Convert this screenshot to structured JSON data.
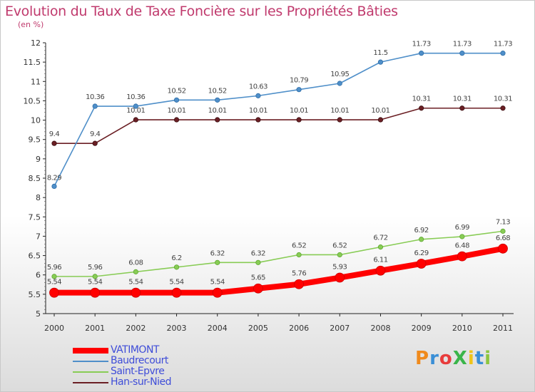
{
  "chart_data": {
    "type": "line",
    "title": "Evolution du Taux de Taxe Foncière sur les Propriétés Bâties",
    "subtitle": "(en %)",
    "x": [
      "2000",
      "2001",
      "2002",
      "2003",
      "2004",
      "2005",
      "2006",
      "2007",
      "2008",
      "2009",
      "2010",
      "2011"
    ],
    "ylim": [
      5,
      12
    ],
    "yticks": [
      "5",
      "5.5",
      "6",
      "6.5",
      "7",
      "7.5",
      "8",
      "8.5",
      "9",
      "9.5",
      "10",
      "10.5",
      "11",
      "11.5",
      "12"
    ],
    "grid": false,
    "series": [
      {
        "name": "VATIMONT",
        "color": "#ff0000",
        "values": [
          5.54,
          5.54,
          5.54,
          5.54,
          5.54,
          5.65,
          5.76,
          5.93,
          6.11,
          6.29,
          6.48,
          6.68
        ],
        "labels": [
          "5.54",
          "5.54",
          "5.54",
          "5.54",
          "5.54",
          "5.65",
          "5.76",
          "5.93",
          "6.11",
          "6.29",
          "6.48",
          "6.68"
        ]
      },
      {
        "name": "Baudrecourt",
        "color": "#4f8fc9",
        "values": [
          8.29,
          10.36,
          10.36,
          10.52,
          10.52,
          10.63,
          10.79,
          10.95,
          11.5,
          11.73,
          11.73,
          11.73
        ],
        "labels": [
          "8.29",
          "10.36",
          "10.36",
          "10.52",
          "10.52",
          "10.63",
          "10.79",
          "10.95",
          "11.5",
          "11.73",
          "11.73",
          "11.73"
        ]
      },
      {
        "name": "Saint-Epvre",
        "color": "#88cc55",
        "values": [
          5.96,
          5.96,
          6.08,
          6.2,
          6.32,
          6.32,
          6.52,
          6.52,
          6.72,
          6.92,
          6.99,
          7.13
        ],
        "labels": [
          "5.96",
          "5.96",
          "6.08",
          "6.2",
          "6.32",
          "6.32",
          "6.52",
          "6.52",
          "6.72",
          "6.92",
          "6.99",
          "7.13"
        ]
      },
      {
        "name": "Han-sur-Nied",
        "color": "#6b1f24",
        "values": [
          9.4,
          9.4,
          10.01,
          10.01,
          10.01,
          10.01,
          10.01,
          10.01,
          10.01,
          10.31,
          10.31,
          10.31
        ],
        "labels": [
          "9.4",
          "9.4",
          "10.01",
          "10.01",
          "10.01",
          "10.01",
          "10.01",
          "10.01",
          "10.01",
          "10.31",
          "10.31",
          "10.31"
        ]
      }
    ],
    "legend_position": "bottom-left"
  },
  "logo": {
    "text": "ProXiti",
    "colors": [
      "#f08a1c",
      "#3a8fd6",
      "#e83c3c",
      "#3ab54a",
      "#f0c419",
      "#3a8fd6",
      "#8dc63f"
    ]
  }
}
